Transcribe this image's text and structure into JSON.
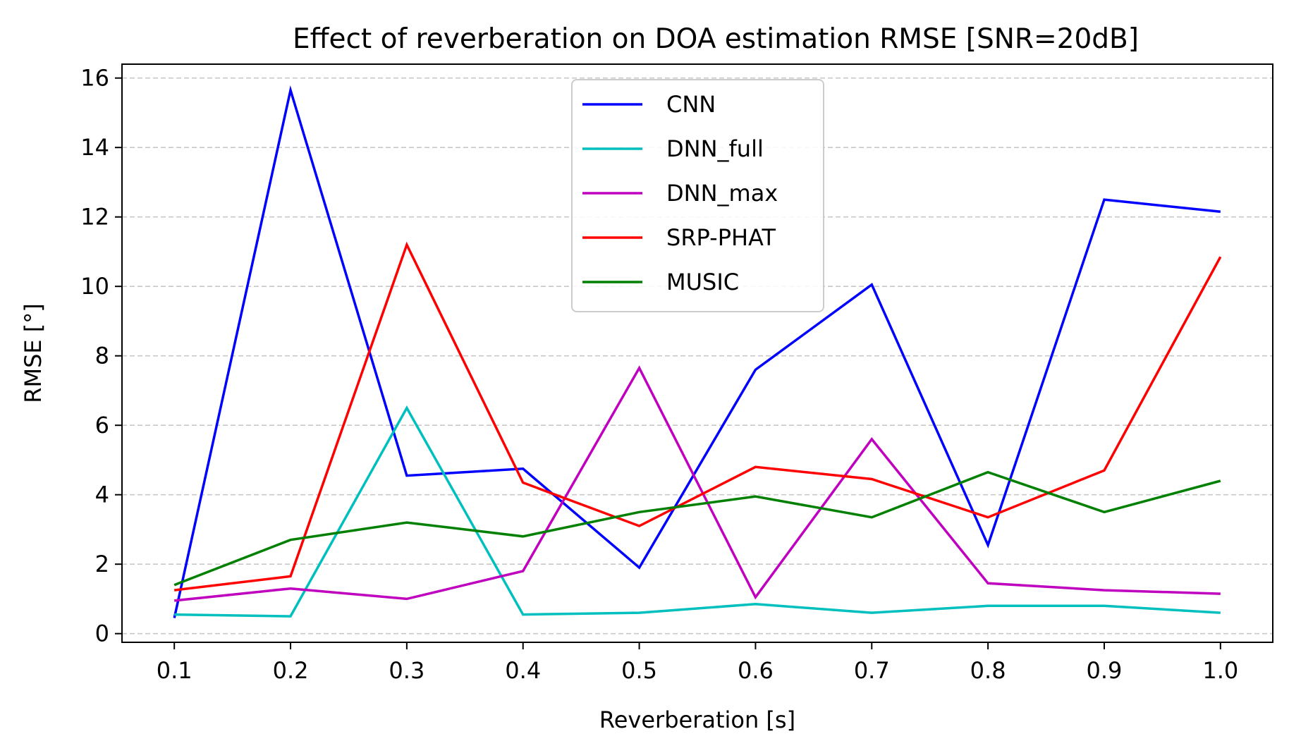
{
  "chart_data": {
    "type": "line",
    "title": "Effect of reverberation on DOA estimation RMSE [SNR=20dB]",
    "xlabel": "Reverberation [s]",
    "ylabel": "RMSE [°]",
    "x": [
      0.1,
      0.2,
      0.3,
      0.4,
      0.5,
      0.6,
      0.7,
      0.8,
      0.9,
      1.0
    ],
    "x_tick_labels": [
      "0.1",
      "0.2",
      "0.3",
      "0.4",
      "0.5",
      "0.6",
      "0.7",
      "0.8",
      "0.9",
      "1.0"
    ],
    "y_ticks": [
      0,
      2,
      4,
      6,
      8,
      10,
      12,
      14,
      16
    ],
    "y_tick_labels": [
      "0",
      "2",
      "4",
      "6",
      "8",
      "10",
      "12",
      "14",
      "16"
    ],
    "xlim": [
      0.055,
      1.045
    ],
    "ylim": [
      -0.25,
      16.4
    ],
    "grid": "horizontal-dashed",
    "legend_position": "top-center",
    "series": [
      {
        "name": "CNN",
        "color": "#0000ff",
        "values": [
          0.45,
          15.65,
          4.55,
          4.75,
          1.9,
          7.6,
          10.05,
          2.55,
          12.5,
          12.15
        ]
      },
      {
        "name": "DNN_full",
        "color": "#00bfbf",
        "values": [
          0.55,
          0.5,
          6.5,
          0.55,
          0.6,
          0.85,
          0.6,
          0.8,
          0.8,
          0.6
        ]
      },
      {
        "name": "DNN_max",
        "color": "#bf00bf",
        "values": [
          0.95,
          1.3,
          1.0,
          1.8,
          7.65,
          1.05,
          5.6,
          1.45,
          1.25,
          1.15
        ]
      },
      {
        "name": "SRP-PHAT",
        "color": "#ff0000",
        "values": [
          1.25,
          1.65,
          11.2,
          4.35,
          3.1,
          4.8,
          4.45,
          3.35,
          4.7,
          10.85
        ]
      },
      {
        "name": "MUSIC",
        "color": "#008000",
        "values": [
          1.4,
          2.7,
          3.2,
          2.8,
          3.5,
          3.95,
          3.35,
          4.65,
          3.5,
          4.4
        ]
      }
    ]
  }
}
